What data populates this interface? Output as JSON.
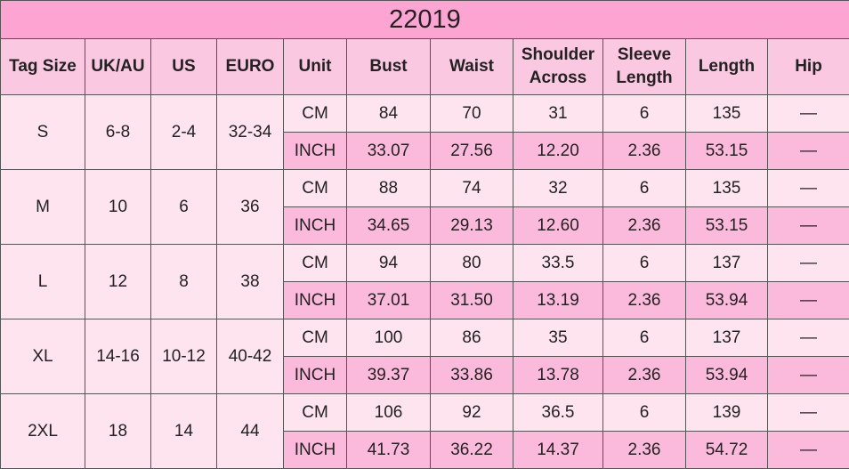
{
  "table": {
    "title": "22019",
    "headers": [
      "Tag Size",
      "UK/AU",
      "US",
      "EURO",
      "Unit",
      "Bust",
      "Waist",
      "Shoulder Across",
      "Sleeve Length",
      "Length",
      "Hip"
    ],
    "sizes": [
      {
        "cells": [
          "S",
          "6-8",
          "2-4",
          "32-34"
        ],
        "cm": [
          "CM",
          "84",
          "70",
          "31",
          "6",
          "135",
          "—"
        ],
        "inch": [
          "INCH",
          "33.07",
          "27.56",
          "12.20",
          "2.36",
          "53.15",
          "—"
        ]
      },
      {
        "cells": [
          "M",
          "10",
          "6",
          "36"
        ],
        "cm": [
          "CM",
          "88",
          "74",
          "32",
          "6",
          "135",
          "—"
        ],
        "inch": [
          "INCH",
          "34.65",
          "29.13",
          "12.60",
          "2.36",
          "53.15",
          "—"
        ]
      },
      {
        "cells": [
          "L",
          "12",
          "8",
          "38"
        ],
        "cm": [
          "CM",
          "94",
          "80",
          "33.5",
          "6",
          "137",
          "—"
        ],
        "inch": [
          "INCH",
          "37.01",
          "31.50",
          "13.19",
          "2.36",
          "53.94",
          "—"
        ]
      },
      {
        "cells": [
          "XL",
          "14-16",
          "10-12",
          "40-42"
        ],
        "cm": [
          "CM",
          "100",
          "86",
          "35",
          "6",
          "137",
          "—"
        ],
        "inch": [
          "INCH",
          "39.37",
          "33.86",
          "13.78",
          "2.36",
          "53.94",
          "—"
        ]
      },
      {
        "cells": [
          "2XL",
          "18",
          "14",
          "44"
        ],
        "cm": [
          "CM",
          "106",
          "92",
          "36.5",
          "6",
          "139",
          "—"
        ],
        "inch": [
          "INCH",
          "41.73",
          "36.22",
          "14.37",
          "2.36",
          "54.72",
          "—"
        ]
      }
    ]
  }
}
